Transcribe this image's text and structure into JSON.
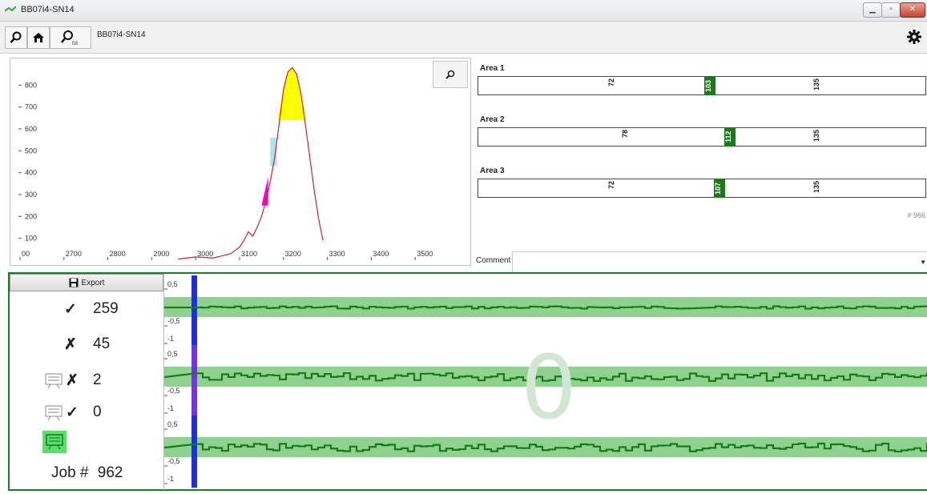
{
  "window": {
    "title": "BB07i4-SN14"
  },
  "toolbar": {
    "device_label": "BB07i4-SN14"
  },
  "plot": {
    "chart_data": {
      "type": "line",
      "x_ticks": [
        "00",
        "2700",
        "2800",
        "2900",
        "3000",
        "3100",
        "3200",
        "3300",
        "3400",
        "3500"
      ],
      "y_ticks": [
        "100",
        "200",
        "300",
        "400",
        "500",
        "600",
        "700",
        "800"
      ],
      "xlim": [
        2600,
        3600
      ],
      "ylim": [
        0,
        900
      ],
      "series": [
        {
          "color": "#c0282d",
          "x": [
            2960,
            3000,
            3040,
            3060,
            3080,
            3100,
            3110,
            3120,
            3130,
            3140,
            3150,
            3160,
            3170,
            3180,
            3190,
            3200,
            3210,
            3220,
            3230,
            3240,
            3250,
            3260,
            3270,
            3280,
            3290
          ],
          "y": [
            5,
            15,
            10,
            20,
            30,
            60,
            90,
            130,
            110,
            150,
            200,
            270,
            360,
            470,
            620,
            780,
            860,
            880,
            850,
            760,
            620,
            470,
            320,
            190,
            90
          ]
        }
      ],
      "fills": [
        {
          "color": "#ffff00",
          "y_from": 640
        },
        {
          "color": "#aee3ee",
          "x_range": [
            3170,
            3185
          ]
        },
        {
          "color": "#ff00cc",
          "x_range": [
            3150,
            3165
          ]
        }
      ]
    }
  },
  "areas": [
    {
      "label": "Area",
      "index": "1",
      "low": "72",
      "mark": "103",
      "high": "135"
    },
    {
      "label": "Area",
      "index": "2",
      "low": "78",
      "mark": "112",
      "high": "135"
    },
    {
      "label": "Area",
      "index": "3",
      "low": "72",
      "mark": "107",
      "high": "135"
    }
  ],
  "count_label": "# 966",
  "comment": {
    "label": "Comment",
    "value": ""
  },
  "export": {
    "label": "Export"
  },
  "stats": {
    "ok": "259",
    "fail": "45",
    "review_fail": "2",
    "review_ok": "0"
  },
  "job": {
    "label": "Job #",
    "number": "962"
  },
  "watermark": "0",
  "traces": {
    "y_ticks": [
      "0,5",
      "0",
      "-0,5",
      "-1"
    ],
    "band_color": "#8fd18f",
    "line_color": "#1a7a1a",
    "marker_colors": [
      "#1a2bff",
      "#7a2bff",
      "#1a2bff"
    ]
  }
}
